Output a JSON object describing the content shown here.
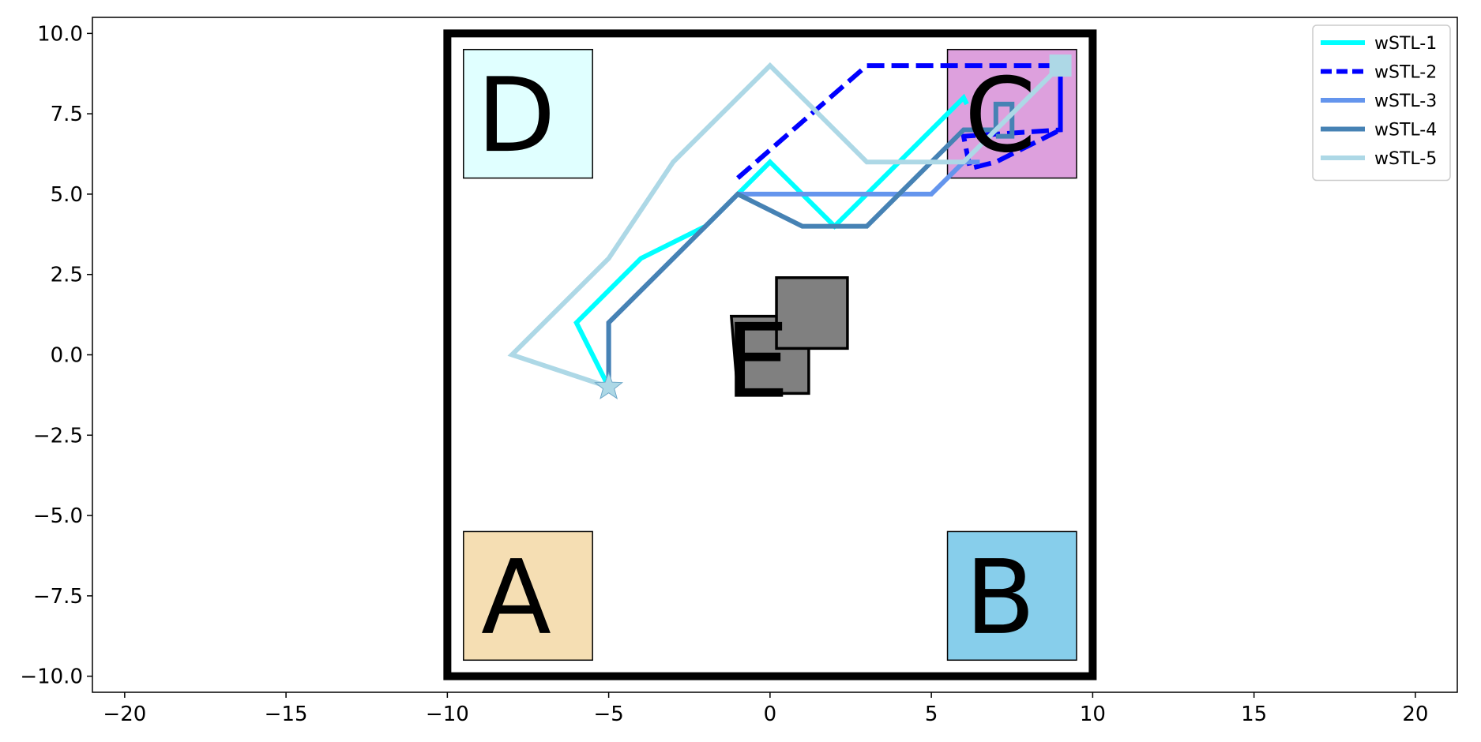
{
  "chart_data": {
    "type": "line",
    "title": "",
    "xlabel": "",
    "ylabel": "",
    "xlim": [
      -21,
      21.3
    ],
    "ylim": [
      -10.5,
      10.5
    ],
    "xticks": [
      -20,
      -15,
      -10,
      -5,
      0,
      5,
      10,
      15,
      20
    ],
    "yticks": [
      -10,
      -7.5,
      -5,
      -2.5,
      0,
      2.5,
      5,
      7.5,
      10
    ],
    "xtick_labels": [
      "−20",
      "−15",
      "−10",
      "−5",
      "0",
      "5",
      "10",
      "15",
      "20"
    ],
    "ytick_labels": [
      "−10.0",
      "−7.5",
      "−5.0",
      "−2.5",
      "0.0",
      "2.5",
      "5.0",
      "7.5",
      "10.0"
    ],
    "grid": false,
    "legend_position": "top-right",
    "boundary": {
      "x": [
        -10,
        10
      ],
      "y": [
        -10,
        10
      ],
      "color": "#000000"
    },
    "regions": [
      {
        "label": "A",
        "x": [
          -9.5,
          -5.5
        ],
        "y": [
          -9.5,
          -5.5
        ],
        "color": "#f5deb3"
      },
      {
        "label": "B",
        "x": [
          5.5,
          9.5
        ],
        "y": [
          -9.5,
          -5.5
        ],
        "color": "#87ceeb"
      },
      {
        "label": "C",
        "x": [
          5.5,
          9.5
        ],
        "y": [
          5.5,
          9.5
        ],
        "color": "#dda0dd"
      },
      {
        "label": "D",
        "x": [
          -9.5,
          -5.5
        ],
        "y": [
          5.5,
          9.5
        ],
        "color": "#e0ffff"
      }
    ],
    "obstacles": [
      {
        "label": "E",
        "points": [
          [
            -1.2,
            1.2
          ],
          [
            1.2,
            1.2
          ],
          [
            1.2,
            -1.2
          ],
          [
            -1,
            -1.2
          ]
        ],
        "color": "#808080"
      },
      {
        "label": "",
        "points": [
          [
            0.2,
            2.4
          ],
          [
            2.4,
            2.4
          ],
          [
            2.4,
            0.2
          ],
          [
            0.2,
            0.2
          ]
        ],
        "color": "#808080"
      }
    ],
    "obstacle_label_position": [
      -0.4,
      -0.2
    ],
    "start": {
      "x": -5,
      "y": -1,
      "color": "#add8e6"
    },
    "series": [
      {
        "name": "wSTL-1",
        "color": "#00ffff",
        "dash": "solid",
        "x": [
          -5,
          -6,
          -4,
          -2,
          0,
          2,
          4,
          6,
          6.1
        ],
        "y": [
          -1,
          1,
          3,
          4,
          6,
          4,
          6,
          8,
          7.8
        ]
      },
      {
        "name": "wSTL-2",
        "color": "#0000ff",
        "dash": "dashed",
        "x": [
          -1,
          3,
          9,
          9,
          6,
          6.2,
          7,
          9,
          9
        ],
        "y": [
          5.5,
          9,
          9,
          7,
          6.8,
          5.8,
          6,
          7,
          9
        ]
      },
      {
        "name": "wSTL-3",
        "color": "#6495ed",
        "dash": "solid",
        "x": [
          -5,
          -5,
          -1,
          1,
          3,
          5,
          6,
          6.5
        ],
        "y": [
          -1,
          1,
          5,
          5,
          5,
          5,
          6,
          6
        ]
      },
      {
        "name": "wSTL-4",
        "color": "#4682b4",
        "dash": "solid",
        "x": [
          -5,
          -5,
          -1,
          1,
          3,
          5,
          6,
          7,
          7,
          7.5,
          7.5,
          7
        ],
        "y": [
          -1,
          1,
          5,
          4,
          4,
          6,
          7,
          7,
          7.8,
          7.8,
          6.8,
          6.8
        ]
      },
      {
        "name": "wSTL-5",
        "color": "#add8e6",
        "dash": "solid",
        "x": [
          -5,
          -8,
          -5,
          -3,
          0,
          3,
          6,
          9,
          9
        ],
        "y": [
          -1,
          0,
          3,
          6,
          9,
          6,
          6,
          9,
          9
        ]
      }
    ]
  }
}
